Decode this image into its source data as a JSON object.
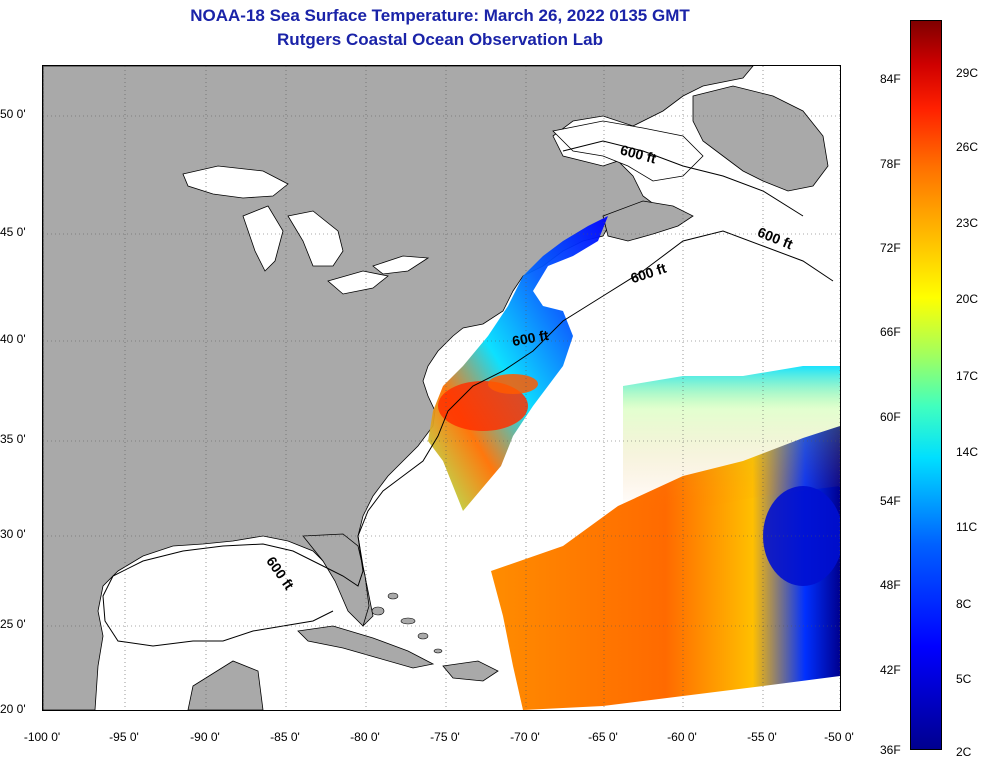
{
  "title": "NOAA-18 Sea Surface Temperature:  March 26, 2022 0135 GMT",
  "subtitle": "Rutgers Coastal Ocean Observation Lab",
  "latitude_labels": [
    "50 0'",
    "45 0'",
    "40 0'",
    "35 0'",
    "30 0'",
    "25 0'",
    "20 0'"
  ],
  "longitude_labels": [
    "-100 0'",
    "-95 0'",
    "-90 0'",
    "-85 0'",
    "-80 0'",
    "-75 0'",
    "-70 0'",
    "-65 0'",
    "-60 0'",
    "-55 0'",
    "-50 0'"
  ],
  "colorbar": {
    "fahrenheit_labels": [
      "84F",
      "78F",
      "72F",
      "66F",
      "60F",
      "54F",
      "48F",
      "42F",
      "36F"
    ],
    "celsius_labels": [
      "29C",
      "26C",
      "23C",
      "20C",
      "17C",
      "14C",
      "11C",
      "8C",
      "5C",
      "2C"
    ],
    "colors": [
      "#00008f",
      "#0000ff",
      "#00dfff",
      "#ffff00",
      "#ff7000",
      "#800000"
    ]
  },
  "depth_contour_label": "600 ft",
  "colors": {
    "land": "#a9a9a9",
    "ocean": "#ffffff",
    "title": "#1a23a8"
  }
}
